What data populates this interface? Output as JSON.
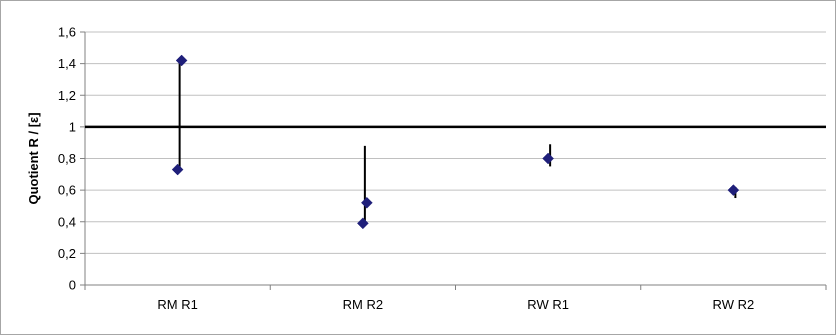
{
  "chart_data": {
    "type": "scatter",
    "title": "",
    "xlabel": "",
    "ylabel": "Quotient R / [ε]",
    "categories": [
      "RM R1",
      "RM R2",
      "RW R1",
      "RW R2"
    ],
    "ylim": [
      0,
      1.6
    ],
    "y_ticks": [
      "0",
      "0,2",
      "0,4",
      "0,6",
      "0,8",
      "1",
      "1,2",
      "1,4",
      "1,6"
    ],
    "grid": true,
    "legend": "none",
    "reference_line": {
      "y": 1
    },
    "series": [
      {
        "values": [
          0.73,
          0.39,
          0.8,
          0.6
        ],
        "error_low": [
          0.73,
          0.39,
          0.75,
          0.55
        ],
        "error_high": [
          1.42,
          0.88,
          0.89,
          0.62
        ]
      },
      {
        "values": [
          1.42,
          0.52,
          null,
          null
        ]
      }
    ],
    "colors": {
      "marker": "#1f1f7a",
      "error_bar": "#000000",
      "reference_line": "#000000",
      "grid": "#c0c0c0",
      "axis": "#808080",
      "frame": "#a6a6a6"
    }
  }
}
